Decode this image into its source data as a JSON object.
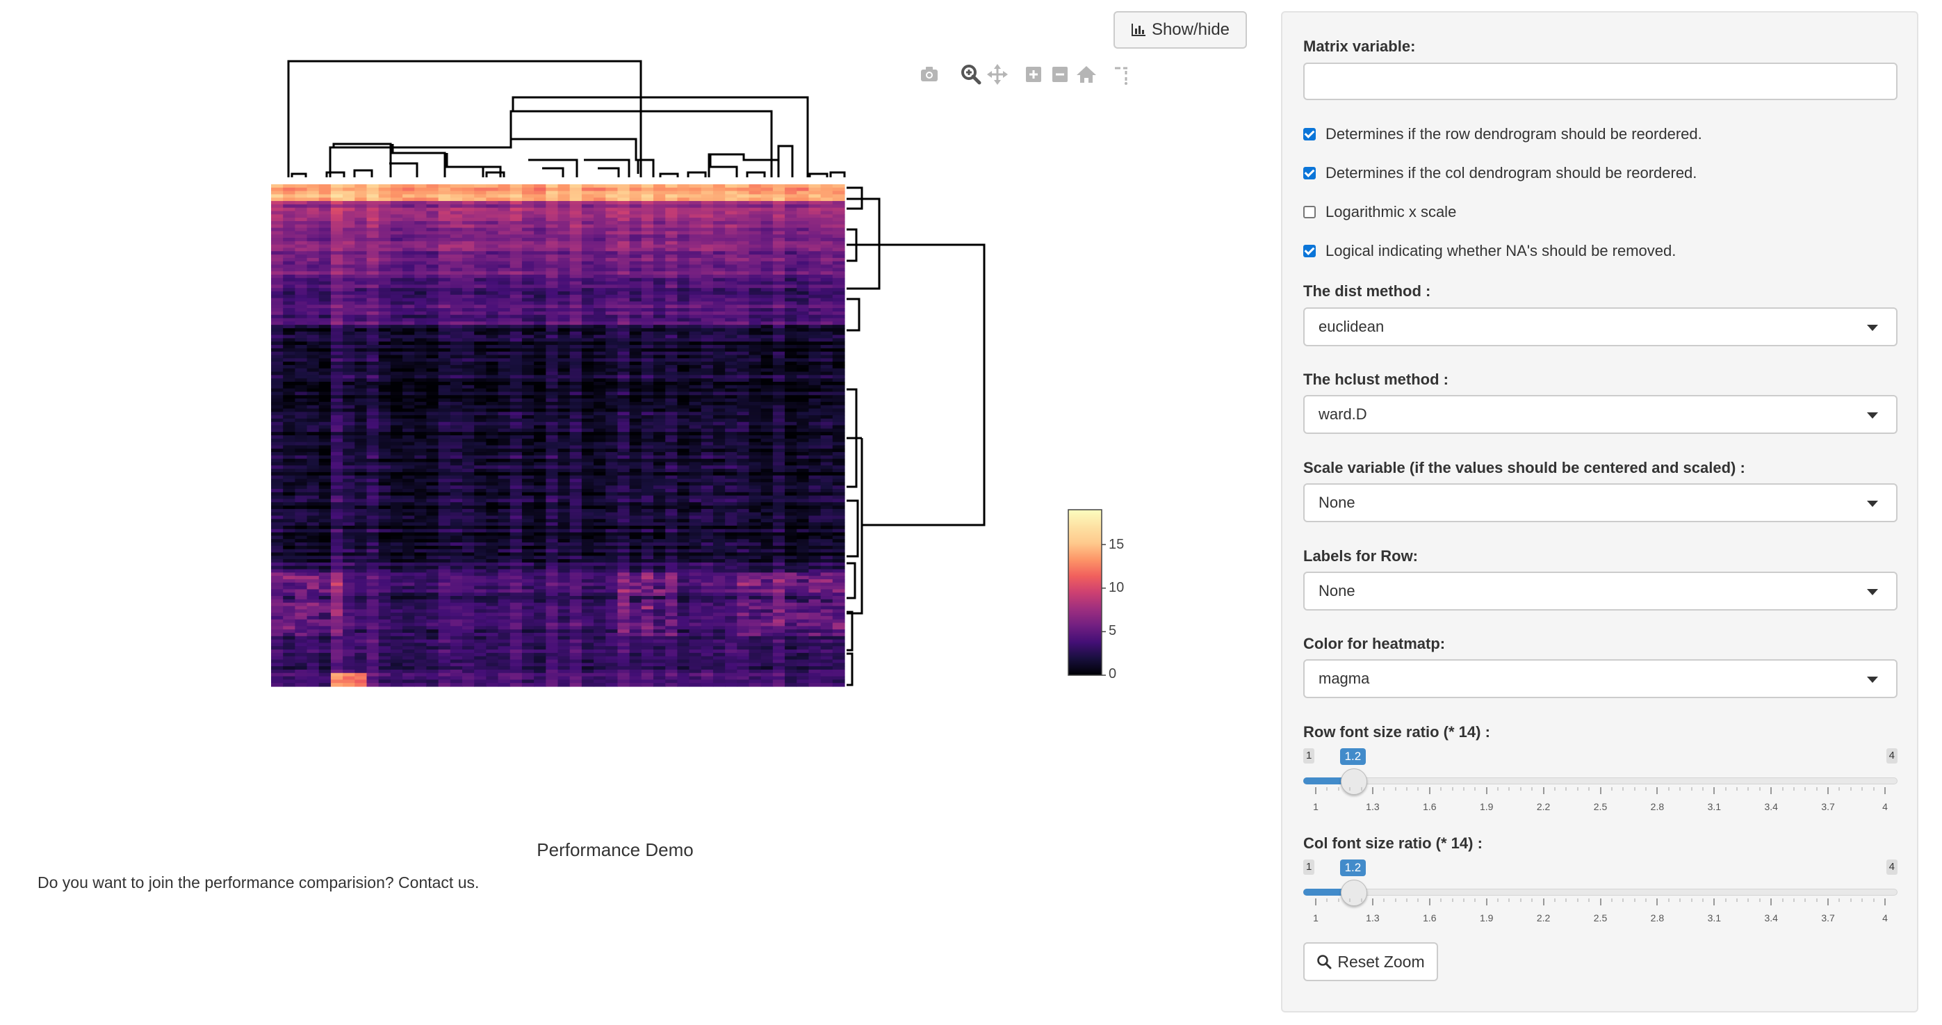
{
  "header": {
    "show_hide_label": "Show/hide"
  },
  "modebar": {
    "icons": [
      "camera-icon",
      "zoom-icon",
      "pan-icon",
      "zoom-in-icon",
      "zoom-out-icon",
      "home-icon",
      "spike-lines-icon"
    ]
  },
  "chart_data": {
    "type": "heatmap",
    "title": "",
    "xlabel": "",
    "ylabel": "",
    "colorscale": "magma",
    "colorbar": {
      "range": [
        0,
        19
      ],
      "ticks": [
        "15",
        "10",
        "5",
        "0"
      ],
      "tick_values": [
        15,
        10,
        5,
        0
      ]
    },
    "row_dendrogram": "right",
    "col_dendrogram": "top"
  },
  "colors": {
    "accent": "#428bca",
    "checkbox": "#0b75d8",
    "heatmap_low": "#000004",
    "heatmap_mid": "#b73779",
    "heatmap_high": "#fcfdbf"
  },
  "main": {
    "plot_caption": "Performance Demo",
    "contact_text": "Do you want to join the performance comparision? Contact us."
  },
  "sidebar": {
    "matrix_label": "Matrix variable:",
    "matrix_value": "",
    "checks": [
      {
        "label": "Determines if the row dendrogram should be reordered.",
        "checked": true
      },
      {
        "label": "Determines if the col dendrogram should be reordered.",
        "checked": true
      },
      {
        "label": "Logarithmic x scale",
        "checked": false
      },
      {
        "label": "Logical indicating whether NA's should be removed.",
        "checked": true
      }
    ],
    "dist_label": "The dist method :",
    "dist_value": "euclidean",
    "hclust_label": "The hclust method :",
    "hclust_value": "ward.D",
    "scale_label": "Scale variable (if the values should be centered and scaled) :",
    "scale_value": "None",
    "rowlabels_label": "Labels for Row:",
    "rowlabels_value": "None",
    "color_label": "Color for heatmatp:",
    "color_value": "magma",
    "row_font_label": "Row font size ratio (* 14) :",
    "col_font_label": "Col font size ratio (* 14) :",
    "slider": {
      "min": "1",
      "max": "4",
      "min_value": 1,
      "max_value": 4,
      "ticks": [
        "1",
        "1.3",
        "1.6",
        "1.9",
        "2.2",
        "2.5",
        "2.8",
        "3.1",
        "3.4",
        "3.7",
        "4"
      ]
    },
    "row_font_value": "1.2",
    "row_font_number": 1.2,
    "col_font_value": "1.2",
    "col_font_number": 1.2,
    "reset_zoom_label": "Reset Zoom"
  }
}
